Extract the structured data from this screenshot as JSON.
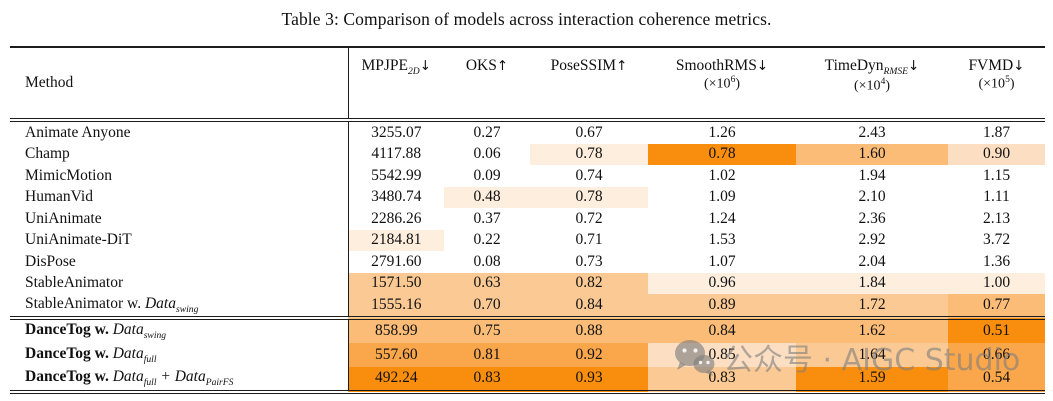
{
  "caption": "Table 3: Comparison of models across interaction coherence metrics.",
  "heat_colors": [
    "transparent",
    "#fdeede",
    "#fcdfc2",
    "#fbca94",
    "#fbbc78",
    "#faa74c",
    "#f98e0e"
  ],
  "watermark": {
    "icon": "wechat-icon",
    "text": "公众号 · AIGC Studio"
  },
  "table": {
    "method_header": "Method",
    "columns": [
      {
        "name": "MPJPE",
        "sub": "2D",
        "arrow": "↓",
        "unit": null
      },
      {
        "name": "OKS",
        "sub": "",
        "arrow": "↑",
        "unit": null
      },
      {
        "name": "PoseSSIM",
        "sub": "",
        "arrow": "↑",
        "unit": null
      },
      {
        "name": "SmoothRMS",
        "sub": "",
        "arrow": "↓",
        "unit": {
          "prefix": "(×10",
          "exp": "6",
          "suffix": ")"
        }
      },
      {
        "name": "TimeDyn",
        "sub": "RMSE",
        "arrow": "↓",
        "unit": {
          "prefix": "(×10",
          "exp": "4",
          "suffix": ")"
        }
      },
      {
        "name": "FVMD",
        "sub": "",
        "arrow": "↓",
        "unit": {
          "prefix": "(×10",
          "exp": "5",
          "suffix": ")"
        }
      }
    ],
    "rows": [
      {
        "method_parts": [
          {
            "t": "Animate Anyone",
            "s": "plain"
          }
        ],
        "values": [
          "3255.07",
          "0.27",
          "0.67",
          "1.26",
          "2.43",
          "1.87"
        ],
        "heat": [
          0,
          0,
          0,
          0,
          0,
          0
        ],
        "section": "baseline"
      },
      {
        "method_parts": [
          {
            "t": "Champ",
            "s": "plain"
          }
        ],
        "values": [
          "4117.88",
          "0.06",
          "0.78",
          "0.78",
          "1.60",
          "0.90"
        ],
        "heat": [
          0,
          0,
          1,
          6,
          4,
          2
        ],
        "section": "baseline"
      },
      {
        "method_parts": [
          {
            "t": "MimicMotion",
            "s": "plain"
          }
        ],
        "values": [
          "5542.99",
          "0.09",
          "0.74",
          "1.02",
          "1.94",
          "1.15"
        ],
        "heat": [
          0,
          0,
          0,
          0,
          0,
          0
        ],
        "section": "baseline"
      },
      {
        "method_parts": [
          {
            "t": "HumanVid",
            "s": "plain"
          }
        ],
        "values": [
          "3480.74",
          "0.48",
          "0.78",
          "1.09",
          "2.10",
          "1.11"
        ],
        "heat": [
          0,
          1,
          1,
          0,
          0,
          0
        ],
        "section": "baseline"
      },
      {
        "method_parts": [
          {
            "t": "UniAnimate",
            "s": "plain"
          }
        ],
        "values": [
          "2286.26",
          "0.37",
          "0.72",
          "1.24",
          "2.36",
          "2.13"
        ],
        "heat": [
          0,
          0,
          0,
          0,
          0,
          0
        ],
        "section": "baseline"
      },
      {
        "method_parts": [
          {
            "t": "UniAnimate-DiT",
            "s": "plain"
          }
        ],
        "values": [
          "2184.81",
          "0.22",
          "0.71",
          "1.53",
          "2.92",
          "3.72"
        ],
        "heat": [
          1,
          0,
          0,
          0,
          0,
          0
        ],
        "section": "baseline"
      },
      {
        "method_parts": [
          {
            "t": "DisPose",
            "s": "plain"
          }
        ],
        "values": [
          "2791.60",
          "0.08",
          "0.73",
          "1.07",
          "2.04",
          "1.36"
        ],
        "heat": [
          0,
          0,
          0,
          0,
          0,
          0
        ],
        "section": "baseline"
      },
      {
        "method_parts": [
          {
            "t": "StableAnimator",
            "s": "plain"
          }
        ],
        "values": [
          "1571.50",
          "0.63",
          "0.82",
          "0.96",
          "1.84",
          "1.00"
        ],
        "heat": [
          3,
          3,
          3,
          1,
          1,
          1
        ],
        "section": "baseline"
      },
      {
        "method_parts": [
          {
            "t": "StableAnimator w. ",
            "s": "plain"
          },
          {
            "t": "Data",
            "s": "math",
            "sub": "swing"
          }
        ],
        "values": [
          "1555.16",
          "0.70",
          "0.84",
          "0.89",
          "1.72",
          "0.77"
        ],
        "heat": [
          3,
          3,
          3,
          3,
          3,
          4
        ],
        "section": "baseline"
      },
      {
        "method_parts": [
          {
            "t": "DanceTog w. ",
            "s": "bold"
          },
          {
            "t": "Data",
            "s": "math",
            "sub": "swing"
          }
        ],
        "values": [
          "858.99",
          "0.75",
          "0.88",
          "0.84",
          "1.62",
          "0.51"
        ],
        "heat": [
          4,
          4,
          4,
          4,
          4,
          6
        ],
        "section": "ours"
      },
      {
        "method_parts": [
          {
            "t": "DanceTog w. ",
            "s": "bold"
          },
          {
            "t": "Data",
            "s": "math",
            "sub": "full"
          }
        ],
        "values": [
          "557.60",
          "0.81",
          "0.92",
          "0.85",
          "1.64",
          "0.66"
        ],
        "heat": [
          5,
          5,
          5,
          2,
          3,
          5
        ],
        "section": "ours"
      },
      {
        "method_parts": [
          {
            "t": "DanceTog w. ",
            "s": "bold"
          },
          {
            "t": "Data",
            "s": "math",
            "sub": "full"
          },
          {
            "t": " + ",
            "s": "math"
          },
          {
            "t": "Data",
            "s": "math",
            "sub": "PairFS"
          }
        ],
        "values": [
          "492.24",
          "0.83",
          "0.93",
          "0.83",
          "1.59",
          "0.54"
        ],
        "heat": [
          6,
          6,
          6,
          3,
          6,
          5
        ],
        "section": "ours"
      }
    ]
  }
}
